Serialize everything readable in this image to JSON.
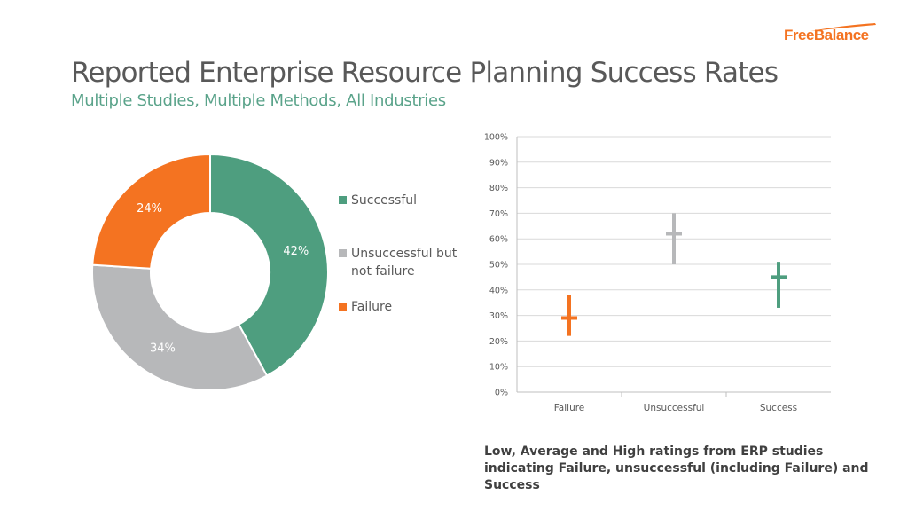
{
  "logo": {
    "text": "FreeBalance"
  },
  "title": "Reported Enterprise Resource Planning Success Rates",
  "subtitle": "Multiple Studies, Multiple Methods, All Industries",
  "colors": {
    "success": "#4e9e7f",
    "unsuccessful": "#b7b8ba",
    "failure": "#f47321"
  },
  "caption": "Low, Average and High ratings from ERP studies indicating Failure, unsuccessful (including Failure) and Success",
  "chart_data": [
    {
      "type": "pie",
      "labels": [
        "Successful",
        "Unsuccessful but not failure",
        "Failure"
      ],
      "values": [
        42,
        34,
        24
      ],
      "data_labels": [
        "42%",
        "34%",
        "24%"
      ],
      "colors": [
        "#4e9e7f",
        "#b7b8ba",
        "#f47321"
      ],
      "legend": "right"
    },
    {
      "type": "scatter",
      "subtype": "high-low-average",
      "categories": [
        "Failure",
        "Unsuccessful",
        "Success"
      ],
      "series": [
        {
          "name": "Low",
          "values": [
            22,
            50,
            33
          ]
        },
        {
          "name": "Average",
          "values": [
            29,
            62,
            45
          ]
        },
        {
          "name": "High",
          "values": [
            38,
            70,
            51
          ]
        }
      ],
      "colors": [
        "#f47321",
        "#b7b8ba",
        "#4e9e7f"
      ],
      "ylim": [
        0,
        100
      ],
      "yticks": [
        "0%",
        "10%",
        "20%",
        "30%",
        "40%",
        "50%",
        "60%",
        "70%",
        "80%",
        "90%",
        "100%"
      ],
      "grid": true
    }
  ]
}
